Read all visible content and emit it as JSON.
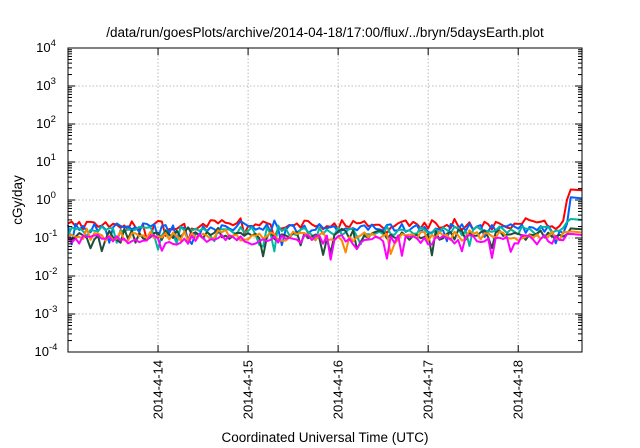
{
  "chart_data": {
    "type": "line",
    "title": "/data/run/goesPlots/archive/2014-04-18/17:00/flux/../bryn/5daysEarth.plot",
    "xlabel": "Coordinated Universal Time (UTC)",
    "ylabel": "cGy/day",
    "yscale": "log",
    "ylim": [
      0.0001,
      10000
    ],
    "xlim": [
      "2014-04-13 00:00",
      "2014-04-18 17:00"
    ],
    "x_ticks": [
      "2014-4-14",
      "2014-4-15",
      "2014-4-16",
      "2014-4-17",
      "2014-4-18"
    ],
    "y_ticks": [
      {
        "base": "10",
        "exp": "4"
      },
      {
        "base": "10",
        "exp": "3"
      },
      {
        "base": "10",
        "exp": "2"
      },
      {
        "base": "10",
        "exp": "1"
      },
      {
        "base": "10",
        "exp": "0"
      },
      {
        "base": "10",
        "exp": "-1"
      },
      {
        "base": "10",
        "exp": "-2"
      },
      {
        "base": "10",
        "exp": "-3"
      },
      {
        "base": "10",
        "exp": "-4"
      }
    ],
    "grid": true,
    "legend": "none",
    "series": [
      {
        "color": "#ff0000",
        "points": [
          [
            "2014-04-13 00:00",
            0.22
          ],
          [
            "2014-04-16 00:00",
            0.22
          ],
          [
            "2014-04-18 12:00",
            0.22
          ],
          [
            "2014-04-18 13:30",
            1.9
          ],
          [
            "2014-04-18 17:00",
            1.8
          ]
        ]
      },
      {
        "color": "#0060ff",
        "points": [
          [
            "2014-04-13 00:00",
            0.18
          ],
          [
            "2014-04-16 00:00",
            0.18
          ],
          [
            "2014-04-18 12:00",
            0.18
          ],
          [
            "2014-04-18 13:30",
            1.2
          ],
          [
            "2014-04-18 17:00",
            1.1
          ]
        ]
      },
      {
        "color": "#00b8a0",
        "points": [
          [
            "2014-04-13 00:00",
            0.15
          ],
          [
            "2014-04-16 00:00",
            0.15
          ],
          [
            "2014-04-18 12:00",
            0.15
          ],
          [
            "2014-04-18 13:30",
            0.32
          ],
          [
            "2014-04-18 17:00",
            0.3
          ]
        ]
      },
      {
        "color": "#1f4f3a",
        "points": [
          [
            "2014-04-13 00:00",
            0.12
          ],
          [
            "2014-04-16 00:00",
            0.12
          ],
          [
            "2014-04-18 12:00",
            0.12
          ],
          [
            "2014-04-18 13:30",
            0.18
          ],
          [
            "2014-04-18 17:00",
            0.17
          ]
        ]
      },
      {
        "color": "#ff8800",
        "points": [
          [
            "2014-04-13 00:00",
            0.11
          ],
          [
            "2014-04-16 00:00",
            0.11
          ],
          [
            "2014-04-18 12:00",
            0.11
          ],
          [
            "2014-04-18 13:30",
            0.15
          ],
          [
            "2014-04-18 17:00",
            0.14
          ]
        ]
      },
      {
        "color": "#ff00ff",
        "points": [
          [
            "2014-04-13 00:00",
            0.09
          ],
          [
            "2014-04-16 00:00",
            0.09
          ],
          [
            "2014-04-18 12:00",
            0.09
          ],
          [
            "2014-04-18 13:30",
            0.13
          ],
          [
            "2014-04-18 17:00",
            0.12
          ]
        ]
      }
    ]
  }
}
